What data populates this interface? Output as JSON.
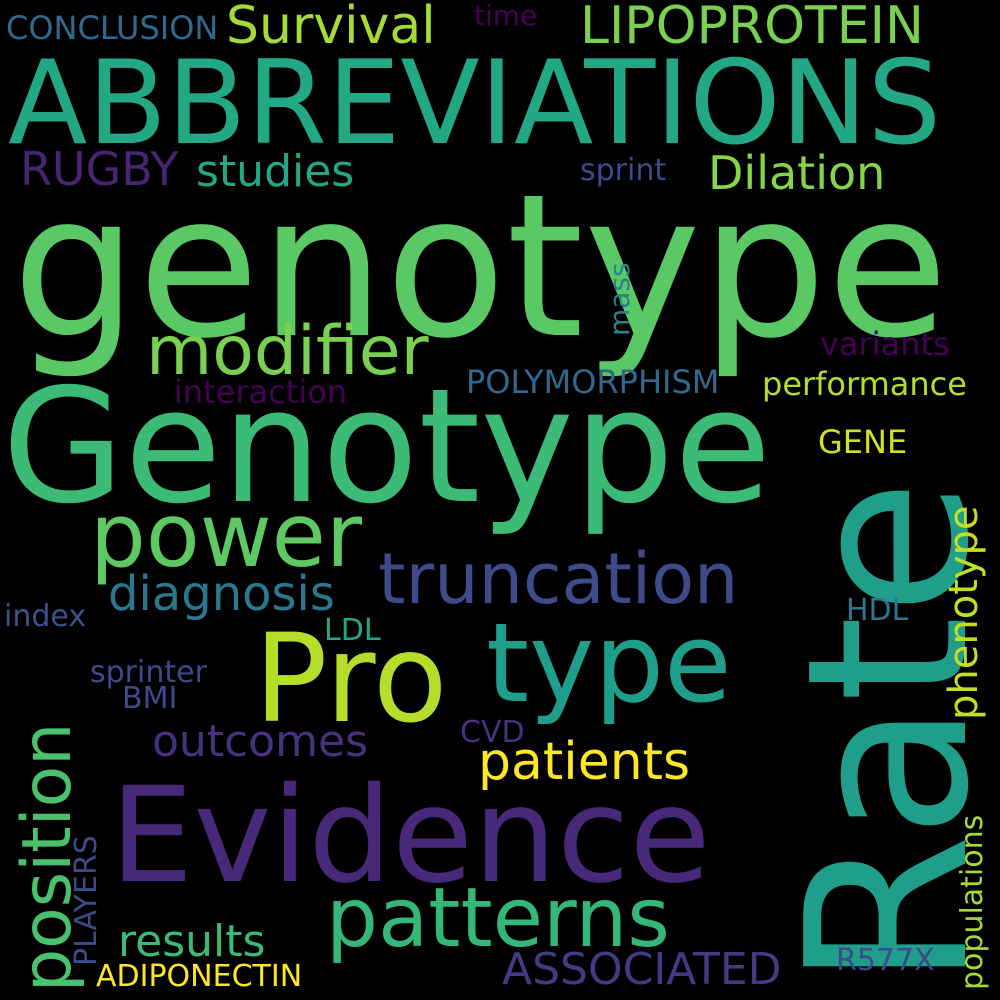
{
  "background": "#000000",
  "palette": {
    "dark_purple": "#440154",
    "purple": "#482878",
    "indigo": "#3e4a89",
    "blue": "#31688e",
    "teal_blue": "#26828e",
    "teal": "#1f9e89",
    "green_teal": "#35b779",
    "green": "#6ece58",
    "yellow_green": "#b5de2b",
    "yellow": "#fde725"
  },
  "words": [
    {
      "text": "genotype",
      "color": "#5ac864"
    },
    {
      "text": "Genotype",
      "color": "#3bbb75"
    },
    {
      "text": "ABBREVIATIONS",
      "color": "#22a884"
    },
    {
      "text": "Rate",
      "color": "#1f9e89"
    },
    {
      "text": "Evidence",
      "color": "#482878"
    },
    {
      "text": "Pro",
      "color": "#b5de2b"
    },
    {
      "text": "type",
      "color": "#1f9e89"
    },
    {
      "text": "power",
      "color": "#5ec962"
    },
    {
      "text": "patterns",
      "color": "#35b779"
    },
    {
      "text": "modifier",
      "color": "#7ad151"
    },
    {
      "text": "truncation",
      "color": "#3e4a89"
    },
    {
      "text": "position",
      "color": "#4ac16d"
    },
    {
      "text": "Survival",
      "color": "#a5db36"
    },
    {
      "text": "LIPOPROTEIN",
      "color": "#7ad151"
    },
    {
      "text": "diagnosis",
      "color": "#2a788e"
    },
    {
      "text": "patients",
      "color": "#fde725"
    },
    {
      "text": "outcomes",
      "color": "#46327e"
    },
    {
      "text": "studies",
      "color": "#22a884"
    },
    {
      "text": "Dilation",
      "color": "#86d549"
    },
    {
      "text": "RUGBY",
      "color": "#482475"
    },
    {
      "text": "results",
      "color": "#3bbb75"
    },
    {
      "text": "ASSOCIATED",
      "color": "#443a83"
    },
    {
      "text": "phenotype",
      "color": "#c2df23"
    },
    {
      "text": "POLYMORPHISM",
      "color": "#31688e"
    },
    {
      "text": "performance",
      "color": "#b5de2b"
    },
    {
      "text": "variants",
      "color": "#440154"
    },
    {
      "text": "interaction",
      "color": "#440154"
    },
    {
      "text": "GENE",
      "color": "#d2e21b"
    },
    {
      "text": "CONCLUSION",
      "color": "#31688e"
    },
    {
      "text": "sprint",
      "color": "#3e4a89"
    },
    {
      "text": "mass",
      "color": "#26828e"
    },
    {
      "text": "time",
      "color": "#440154"
    },
    {
      "text": "index",
      "color": "#3b528b"
    },
    {
      "text": "LDL",
      "color": "#22a884"
    },
    {
      "text": "HDL",
      "color": "#2a788e"
    },
    {
      "text": "sprinter",
      "color": "#3e4a89"
    },
    {
      "text": "BMI",
      "color": "#3e4a89"
    },
    {
      "text": "CVD",
      "color": "#46327e"
    },
    {
      "text": "PLAYERS",
      "color": "#3e4a89"
    },
    {
      "text": "ADIPONECTIN",
      "color": "#fde725"
    },
    {
      "text": "R577X",
      "color": "#3e4a89"
    },
    {
      "text": "populations",
      "color": "#a5db36"
    }
  ]
}
